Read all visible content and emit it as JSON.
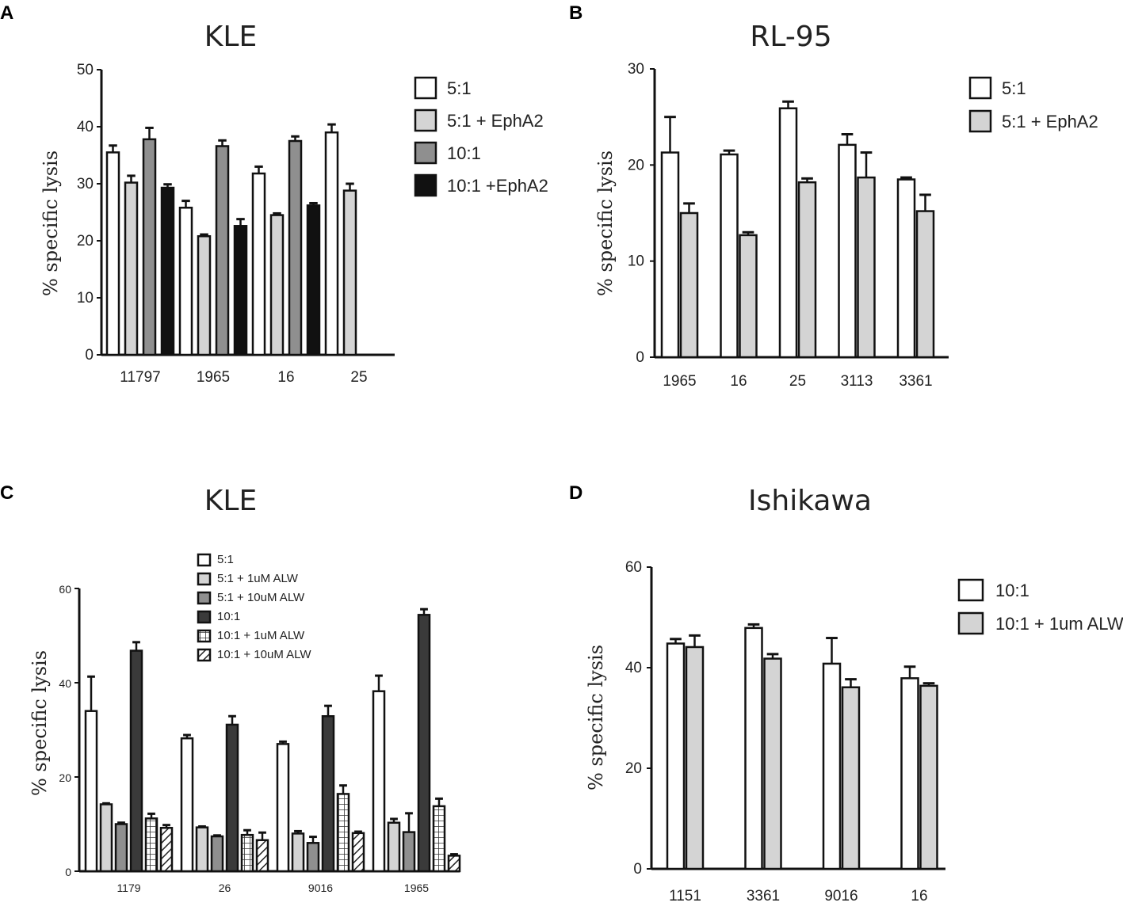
{
  "colors": {
    "white": "#ffffff",
    "light_gray": "#d4d4d4",
    "mid_gray": "#8f8f8f",
    "dark_gray": "#3a3a3a",
    "black": "#111111",
    "axis": "#111111"
  },
  "chart_data": [
    {
      "panel": "A",
      "title": "KLE",
      "type": "bar",
      "ylabel": "% specific lysis",
      "xlabel": "",
      "ylim": [
        0,
        50
      ],
      "yticks": [
        0,
        10,
        20,
        30,
        40,
        50
      ],
      "categories": [
        "11797",
        "1965",
        "16",
        "25"
      ],
      "legend_position": "right",
      "series": [
        {
          "name": "5:1",
          "fill": "white",
          "values": [
            35.5,
            25.8,
            31.8,
            39.0
          ],
          "errors": [
            1.2,
            1.2,
            1.2,
            1.4
          ]
        },
        {
          "name": "5:1 + EphA2",
          "fill": "light_gray",
          "values": [
            30.2,
            20.8,
            24.5,
            28.8
          ],
          "errors": [
            1.2,
            0.3,
            0.3,
            1.2
          ]
        },
        {
          "name": "10:1",
          "fill": "mid_gray",
          "values": [
            37.8,
            36.6,
            37.5,
            null
          ],
          "errors": [
            2.0,
            1.0,
            0.8,
            null
          ]
        },
        {
          "name": "10:1 +EphA2",
          "fill": "black",
          "values": [
            29.3,
            22.6,
            26.2,
            null
          ],
          "errors": [
            0.6,
            1.2,
            0.4,
            null
          ]
        }
      ]
    },
    {
      "panel": "B",
      "title": "RL-95",
      "type": "bar",
      "ylabel": "% specific lysis",
      "xlabel": "",
      "ylim": [
        0,
        30
      ],
      "yticks": [
        0,
        10,
        20,
        30
      ],
      "categories": [
        "1965",
        "16",
        "25",
        "3113",
        "3361"
      ],
      "legend_position": "right",
      "series": [
        {
          "name": "5:1",
          "fill": "white",
          "values": [
            21.3,
            21.1,
            25.9,
            22.1,
            18.5
          ],
          "errors": [
            3.7,
            0.4,
            0.7,
            1.1,
            0.2
          ]
        },
        {
          "name": "5:1 + EphA2",
          "fill": "light_gray",
          "values": [
            15.0,
            12.7,
            18.2,
            18.7,
            15.2
          ],
          "errors": [
            1.0,
            0.3,
            0.4,
            2.6,
            1.7
          ]
        }
      ]
    },
    {
      "panel": "C",
      "title": "KLE",
      "type": "bar",
      "ylabel": "% specific lysis",
      "xlabel": "",
      "ylim": [
        0,
        60
      ],
      "yticks": [
        0,
        20,
        40,
        60
      ],
      "categories": [
        "1179",
        "26",
        "9016",
        "1965"
      ],
      "legend_position": "top",
      "series": [
        {
          "name": "5:1",
          "fill": "white",
          "values": [
            34.0,
            28.2,
            27.0,
            38.2
          ],
          "errors": [
            7.3,
            0.7,
            0.5,
            3.3
          ]
        },
        {
          "name": "5:1 + 1uM ALW",
          "fill": "light_gray",
          "values": [
            14.2,
            9.3,
            8.0,
            10.3
          ],
          "errors": [
            0.2,
            0.2,
            0.5,
            0.8
          ]
        },
        {
          "name": "5:1 + 10uM ALW",
          "fill": "mid_gray",
          "values": [
            10.0,
            7.4,
            6.0,
            8.3
          ],
          "errors": [
            0.3,
            0.2,
            1.3,
            4.0
          ]
        },
        {
          "name": "10:1",
          "fill": "dark_gray",
          "values": [
            46.8,
            31.1,
            32.9,
            54.4
          ],
          "errors": [
            1.8,
            1.8,
            2.2,
            1.2
          ]
        },
        {
          "name": "10:1 + 1uM ALW",
          "fill": "grid",
          "values": [
            11.2,
            7.7,
            16.4,
            13.8
          ],
          "errors": [
            1.0,
            1.0,
            1.8,
            1.6
          ]
        },
        {
          "name": "10:1 + 10uM ALW",
          "fill": "hatch",
          "values": [
            9.2,
            6.6,
            8.1,
            3.3
          ],
          "errors": [
            0.6,
            1.6,
            0.3,
            0.3
          ]
        }
      ]
    },
    {
      "panel": "D",
      "title": "Ishikawa",
      "type": "bar",
      "ylabel": "% specific lysis",
      "xlabel": "",
      "ylim": [
        0,
        60
      ],
      "yticks": [
        0,
        20,
        40,
        60
      ],
      "categories": [
        "1151",
        "3361",
        "9016",
        "16"
      ],
      "legend_position": "right",
      "series": [
        {
          "name": "10:1",
          "fill": "white",
          "values": [
            44.8,
            47.9,
            40.8,
            37.9
          ],
          "errors": [
            0.9,
            0.7,
            5.1,
            2.3
          ]
        },
        {
          "name": "10:1 + 1um ALW",
          "fill": "light_gray",
          "values": [
            44.1,
            41.8,
            36.1,
            36.4
          ],
          "errors": [
            2.3,
            0.9,
            1.6,
            0.5
          ]
        }
      ]
    }
  ]
}
